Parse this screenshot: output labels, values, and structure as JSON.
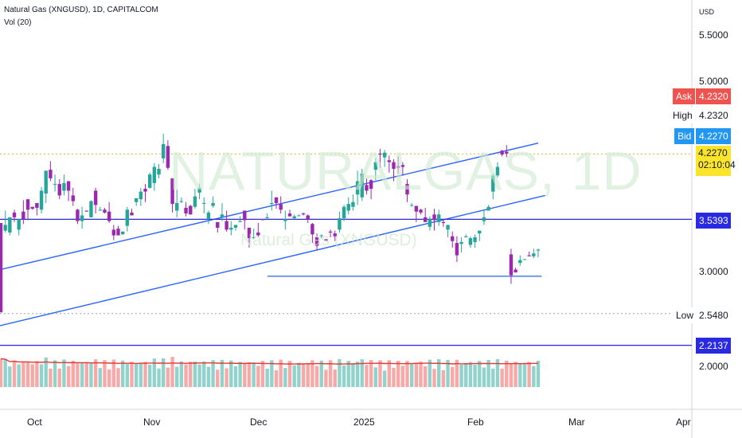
{
  "header": {
    "symbol_line": "Natural Gas (XNGUSD), 1D, CAPITALCOM",
    "indicator_line": "Vol (20)"
  },
  "watermark": {
    "main": "NATURALGAS, 1D",
    "sub": "Natural Gas (XNGUSD)"
  },
  "axis": {
    "currency": "USD",
    "y_ticks": [
      "5.5000",
      "5.0000",
      "3.0000",
      "2.0000"
    ],
    "x_ticks": [
      "Oct",
      "Nov",
      "Dec",
      "2025",
      "Feb",
      "Mar",
      "Apr"
    ]
  },
  "price_tags": {
    "ask_label": "Ask",
    "ask_value": "4.2320",
    "high_label": "High",
    "high_value": "4.2320",
    "bid_label": "Bid",
    "bid_value": "4.2270",
    "last_value": "4.2270",
    "countdown": "02:10:04",
    "level_1": "3.5393",
    "low_label": "Low",
    "low_value": "2.5480",
    "level_2": "2.2137"
  },
  "colors": {
    "up": "#26a69a",
    "down": "#9c27b0",
    "vol_up": "#92d2cc",
    "vol_down": "#f7a9a7",
    "trendline": "#2962ff",
    "hline": "#2a2ae0",
    "ma": "#e53935",
    "last_price": "#fbe52c",
    "ask": "#ef5350",
    "bid": "#2196f3"
  },
  "chart_data": {
    "type": "candlestick",
    "title": "Natural Gas (XNGUSD), 1D, CAPITALCOM",
    "price_axis_range": [
      1.5,
      5.9
    ],
    "x_range": [
      "2024-09-21",
      "2025-04-08"
    ],
    "trend_channel": {
      "upper": {
        "start": [
          "2024-09-21",
          3.01
        ],
        "end": [
          "2025-02-23",
          4.34
        ]
      },
      "lower": {
        "start": [
          "2024-09-21",
          2.42
        ],
        "end": [
          "2025-02-25",
          3.79
        ]
      }
    },
    "horizontal_levels": [
      3.5393,
      2.2137
    ],
    "support_segment": {
      "value": 2.94,
      "from": "2024-12-07",
      "to": "2025-02-24"
    },
    "dotted_levels": [
      4.227,
      2.548
    ],
    "candles": [
      [
        3.5,
        2.56,
        3.41,
        2.61
      ],
      [
        3.42,
        3.48,
        3.63,
        3.4
      ],
      [
        3.4,
        3.56,
        3.56,
        3.37
      ],
      [
        3.61,
        3.56,
        3.64,
        3.51
      ],
      [
        3.43,
        3.54,
        3.54,
        3.37
      ],
      [
        3.62,
        3.54,
        3.74,
        3.49
      ],
      [
        3.75,
        3.64,
        3.75,
        3.53
      ],
      [
        3.67,
        3.65,
        3.67,
        3.64
      ],
      [
        3.71,
        3.66,
        3.71,
        3.58
      ],
      [
        3.64,
        3.84,
        3.88,
        3.6
      ],
      [
        3.81,
        4.05,
        4.05,
        3.71
      ],
      [
        4.06,
        3.97,
        4.15,
        3.94
      ],
      [
        3.91,
        3.91,
        4.01,
        3.83
      ],
      [
        3.91,
        3.79,
        3.96,
        3.75
      ],
      [
        3.84,
        3.92,
        4.01,
        3.79
      ],
      [
        3.94,
        3.84,
        3.94,
        3.73
      ],
      [
        3.79,
        3.73,
        3.87,
        3.68
      ],
      [
        3.64,
        3.52,
        3.65,
        3.49
      ],
      [
        3.52,
        3.58,
        3.67,
        3.44
      ],
      [
        3.63,
        3.62,
        3.63,
        3.62
      ],
      [
        3.56,
        3.73,
        3.74,
        3.56
      ],
      [
        3.84,
        3.69,
        3.87,
        3.6
      ],
      [
        3.63,
        3.64,
        3.67,
        3.63
      ],
      [
        3.64,
        3.61,
        3.66,
        3.6
      ],
      [
        3.62,
        3.52,
        3.72,
        3.5
      ],
      [
        3.43,
        3.37,
        3.48,
        3.32
      ],
      [
        3.44,
        3.37,
        3.47,
        3.37
      ],
      [
        3.38,
        3.41,
        3.41,
        3.38
      ],
      [
        3.47,
        3.64,
        3.67,
        3.41
      ],
      [
        3.61,
        3.58,
        3.65,
        3.58
      ],
      [
        3.72,
        3.76,
        3.76,
        3.68
      ],
      [
        3.75,
        3.83,
        3.87,
        3.68
      ],
      [
        3.86,
        3.83,
        3.91,
        3.72
      ],
      [
        3.87,
        4.01,
        4.03,
        3.86
      ],
      [
        3.92,
        4.09,
        4.13,
        3.84
      ],
      [
        4.01,
        4.07,
        4.12,
        3.97
      ],
      [
        4.18,
        4.33,
        4.44,
        4.13
      ],
      [
        4.31,
        4.08,
        4.37,
        4.06
      ],
      [
        3.97,
        3.7,
        3.97,
        3.61
      ],
      [
        3.63,
        3.71,
        3.85,
        3.56
      ],
      [
        3.73,
        3.73,
        3.77,
        3.71
      ],
      [
        3.66,
        3.6,
        3.72,
        3.57
      ],
      [
        3.68,
        3.59,
        3.69,
        3.59
      ],
      [
        3.67,
        3.78,
        3.86,
        3.65
      ],
      [
        3.82,
        3.87,
        3.91,
        3.75
      ],
      [
        3.71,
        3.71,
        3.77,
        3.6
      ],
      [
        3.54,
        3.61,
        3.63,
        3.49
      ],
      [
        3.68,
        3.71,
        3.78,
        3.66
      ],
      [
        3.51,
        3.45,
        3.51,
        3.4
      ],
      [
        3.56,
        3.59,
        3.71,
        3.52
      ],
      [
        3.52,
        3.43,
        3.63,
        3.41
      ],
      [
        3.43,
        3.45,
        3.52,
        3.37
      ],
      [
        3.45,
        3.48,
        3.48,
        3.42
      ],
      [
        3.51,
        3.52,
        3.57,
        3.51
      ],
      [
        3.63,
        3.53,
        3.63,
        3.43
      ],
      [
        3.45,
        3.34,
        3.45,
        3.24
      ],
      [
        3.35,
        3.35,
        3.44,
        3.33
      ],
      [
        3.4,
        3.37,
        3.5,
        3.35
      ],
      [
        3.54,
        3.53,
        3.54,
        3.53
      ],
      [
        3.55,
        3.56,
        3.6,
        3.55
      ],
      [
        3.7,
        3.71,
        3.84,
        3.63
      ],
      [
        3.77,
        3.71,
        3.77,
        3.65
      ],
      [
        3.7,
        3.64,
        3.78,
        3.6
      ],
      [
        3.52,
        3.54,
        3.63,
        3.43
      ],
      [
        3.6,
        3.57,
        3.64,
        3.57
      ],
      [
        3.55,
        3.57,
        3.59,
        3.54
      ],
      [
        3.58,
        3.58,
        3.59,
        3.58
      ],
      [
        3.6,
        3.59,
        3.61,
        3.58
      ],
      [
        3.58,
        3.54,
        3.59,
        3.5
      ],
      [
        3.49,
        3.38,
        3.5,
        3.29
      ],
      [
        3.35,
        3.26,
        3.39,
        3.21
      ],
      [
        3.37,
        3.37,
        3.38,
        3.34
      ],
      [
        3.33,
        3.31,
        3.33,
        3.31
      ],
      [
        3.41,
        3.4,
        3.43,
        3.35
      ],
      [
        3.39,
        3.36,
        3.42,
        3.31
      ],
      [
        3.43,
        3.55,
        3.62,
        3.4
      ],
      [
        3.55,
        3.67,
        3.69,
        3.52
      ],
      [
        3.63,
        3.7,
        3.77,
        3.59
      ],
      [
        3.67,
        3.72,
        3.8,
        3.63
      ],
      [
        3.8,
        3.94,
        4.05,
        3.69
      ],
      [
        3.77,
        4.02,
        4.07,
        3.73
      ],
      [
        3.9,
        3.84,
        3.97,
        3.8
      ],
      [
        3.95,
        3.86,
        3.96,
        3.75
      ],
      [
        4.06,
        4.14,
        4.18,
        3.95
      ],
      [
        4.23,
        4.22,
        4.28,
        4.08
      ],
      [
        4.19,
        4.24,
        4.27,
        4.09
      ],
      [
        4.16,
        4.14,
        4.21,
        4.03
      ],
      [
        4.14,
        4.07,
        4.17,
        3.94
      ],
      [
        4.1,
        4.08,
        4.2,
        4.02
      ],
      [
        4.11,
        4.09,
        4.14,
        4.0
      ],
      [
        3.91,
        3.8,
        3.96,
        3.72
      ],
      [
        3.69,
        3.69,
        3.71,
        3.67
      ],
      [
        3.68,
        3.62,
        3.68,
        3.51
      ],
      [
        3.64,
        3.61,
        3.65,
        3.59
      ],
      [
        3.56,
        3.51,
        3.66,
        3.51
      ],
      [
        3.46,
        3.54,
        3.57,
        3.42
      ],
      [
        3.59,
        3.53,
        3.65,
        3.42
      ],
      [
        3.51,
        3.59,
        3.64,
        3.47
      ],
      [
        3.51,
        3.5,
        3.53,
        3.46
      ],
      [
        3.43,
        3.48,
        3.48,
        3.35
      ],
      [
        3.36,
        3.31,
        3.41,
        3.24
      ],
      [
        3.29,
        3.16,
        3.36,
        3.09
      ],
      [
        3.28,
        3.3,
        3.35,
        3.19
      ],
      [
        3.35,
        3.36,
        3.38,
        3.35
      ],
      [
        3.27,
        3.34,
        3.36,
        3.24
      ],
      [
        3.3,
        3.35,
        3.38,
        3.24
      ],
      [
        3.39,
        3.42,
        3.42,
        3.31
      ],
      [
        3.52,
        3.56,
        3.63,
        3.48
      ],
      [
        3.63,
        3.67,
        3.69,
        3.63
      ],
      [
        3.83,
        4.0,
        4.02,
        3.75
      ],
      [
        4.0,
        4.09,
        4.14,
        3.98
      ],
      [
        4.26,
        4.22,
        4.27,
        4.2
      ],
      [
        4.25,
        4.23,
        4.32,
        4.19
      ],
      [
        3.17,
        2.95,
        3.23,
        2.86
      ],
      [
        3.01,
        2.98,
        3.03,
        2.98
      ],
      [
        3.08,
        3.11,
        3.16,
        3.05
      ],
      [
        3.12,
        3.12,
        3.12,
        3.11
      ],
      [
        3.16,
        3.15,
        3.2,
        3.15
      ],
      [
        3.15,
        3.18,
        3.23,
        3.13
      ],
      [
        3.21,
        3.22,
        3.23,
        3.14
      ]
    ],
    "volume": [],
    "volume_ma_period": 20
  }
}
